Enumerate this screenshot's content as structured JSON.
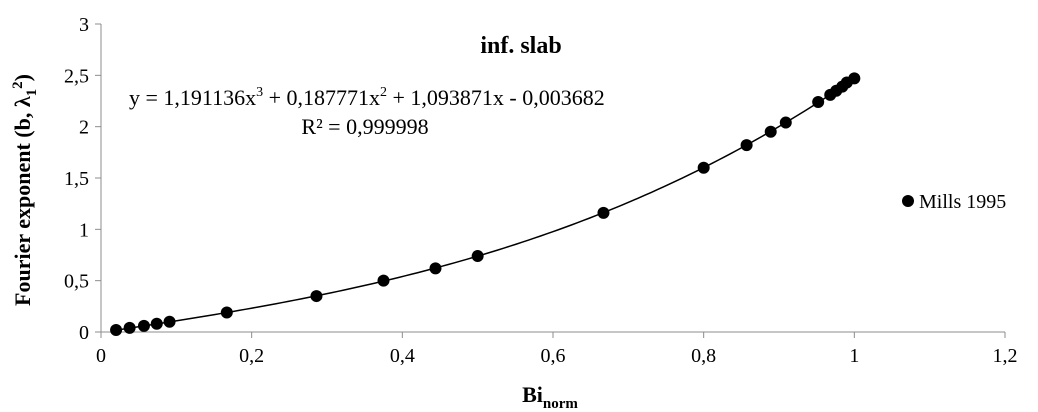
{
  "chart_data": {
    "type": "scatter",
    "title": "inf. slab",
    "xlabel": "Bi",
    "xlabel_sub": "norm",
    "ylabel": "Fourier exponent (b, λ",
    "ylabel_sub": "1",
    "ylabel_sup": "2",
    "ylabel_end": ")",
    "xlim": [
      0,
      1.2
    ],
    "ylim": [
      0,
      3
    ],
    "x_ticks": [
      0,
      0.2,
      0.4,
      0.6,
      0.8,
      1.0,
      1.2
    ],
    "x_tick_labels": [
      "0",
      "0,2",
      "0,4",
      "0,6",
      "0,8",
      "1",
      "1,2"
    ],
    "y_ticks": [
      0,
      0.5,
      1.0,
      1.5,
      2.0,
      2.5,
      3.0
    ],
    "y_tick_labels": [
      "0",
      "0,5",
      "1",
      "1,5",
      "2",
      "2,5",
      "3"
    ],
    "grid": false,
    "legend_position": "right",
    "series": [
      {
        "name": "Mills 1995",
        "color": "#000000",
        "marker": "circle",
        "points": [
          {
            "x": 0.02,
            "y": 0.02
          },
          {
            "x": 0.038,
            "y": 0.04
          },
          {
            "x": 0.057,
            "y": 0.06
          },
          {
            "x": 0.074,
            "y": 0.08
          },
          {
            "x": 0.091,
            "y": 0.1
          },
          {
            "x": 0.167,
            "y": 0.19
          },
          {
            "x": 0.286,
            "y": 0.35
          },
          {
            "x": 0.375,
            "y": 0.5
          },
          {
            "x": 0.444,
            "y": 0.62
          },
          {
            "x": 0.5,
            "y": 0.74
          },
          {
            "x": 0.667,
            "y": 1.16
          },
          {
            "x": 0.8,
            "y": 1.6
          },
          {
            "x": 0.857,
            "y": 1.82
          },
          {
            "x": 0.889,
            "y": 1.95
          },
          {
            "x": 0.909,
            "y": 2.04
          },
          {
            "x": 0.952,
            "y": 2.24
          },
          {
            "x": 0.968,
            "y": 2.31
          },
          {
            "x": 0.976,
            "y": 2.35
          },
          {
            "x": 0.984,
            "y": 2.39
          },
          {
            "x": 0.99,
            "y": 2.43
          },
          {
            "x": 1.0,
            "y": 2.47
          }
        ]
      }
    ],
    "trendline": {
      "type": "polynomial",
      "coefficients": [
        1.191136,
        0.187771,
        1.093871,
        -0.003682
      ],
      "x_range": [
        0.02,
        1.0
      ],
      "color": "#000000"
    },
    "annotations": {
      "equation_parts": [
        "y = 1,191136x",
        "3",
        " + 0,187771x",
        "2",
        " + 1,093871x - 0,003682"
      ],
      "r2": "R² = 0,999998"
    }
  }
}
